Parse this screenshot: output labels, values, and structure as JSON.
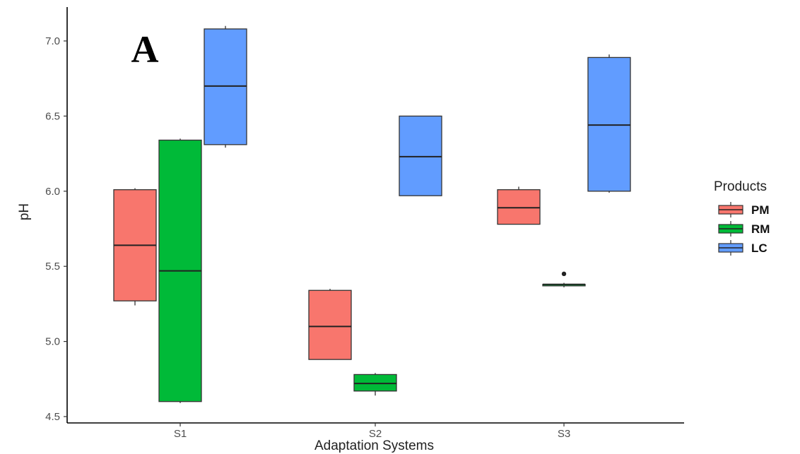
{
  "chart_data": {
    "type": "boxplot",
    "panel_label": "A",
    "xlabel": "Adaptation Systems",
    "ylabel": "pH",
    "categories": [
      "S1",
      "S2",
      "S3"
    ],
    "ylim": [
      4.47,
      7.12
    ],
    "yticks": [
      4.5,
      5.0,
      5.5,
      6.0,
      6.5,
      7.0
    ],
    "ytick_labels": [
      "4.5",
      "5.0",
      "5.5",
      "6.0",
      "6.5",
      "7.0"
    ],
    "grid": false,
    "legend": {
      "title": "Products",
      "position": "right",
      "entries": [
        "PM",
        "RM",
        "LC"
      ]
    },
    "series": [
      {
        "name": "PM",
        "color": "#F8766D",
        "boxes": [
          {
            "category": "S1",
            "min": 5.24,
            "q1": 5.27,
            "median": 5.64,
            "q3": 6.01,
            "max": 6.02,
            "outliers": []
          },
          {
            "category": "S2",
            "min": 4.88,
            "q1": 4.88,
            "median": 5.1,
            "q3": 5.34,
            "max": 5.35,
            "outliers": []
          },
          {
            "category": "S3",
            "min": 5.78,
            "q1": 5.78,
            "median": 5.89,
            "q3": 6.01,
            "max": 6.03,
            "outliers": []
          }
        ]
      },
      {
        "name": "RM",
        "color": "#00BA38",
        "boxes": [
          {
            "category": "S1",
            "min": 4.59,
            "q1": 4.6,
            "median": 5.47,
            "q3": 6.34,
            "max": 6.35,
            "outliers": []
          },
          {
            "category": "S2",
            "min": 4.64,
            "q1": 4.67,
            "median": 4.72,
            "q3": 4.78,
            "max": 4.79,
            "outliers": []
          },
          {
            "category": "S3",
            "min": 5.36,
            "q1": 5.37,
            "median": 5.38,
            "q3": 5.38,
            "max": 5.39,
            "outliers": [
              5.45
            ]
          }
        ]
      },
      {
        "name": "LC",
        "color": "#619CFF",
        "boxes": [
          {
            "category": "S1",
            "min": 6.29,
            "q1": 6.31,
            "median": 6.7,
            "q3": 7.08,
            "max": 7.1,
            "outliers": []
          },
          {
            "category": "S2",
            "min": 5.97,
            "q1": 5.97,
            "median": 6.23,
            "q3": 6.5,
            "max": 6.5,
            "outliers": []
          },
          {
            "category": "S3",
            "min": 5.99,
            "q1": 6.0,
            "median": 6.44,
            "q3": 6.89,
            "max": 6.91,
            "outliers": []
          }
        ]
      }
    ]
  }
}
